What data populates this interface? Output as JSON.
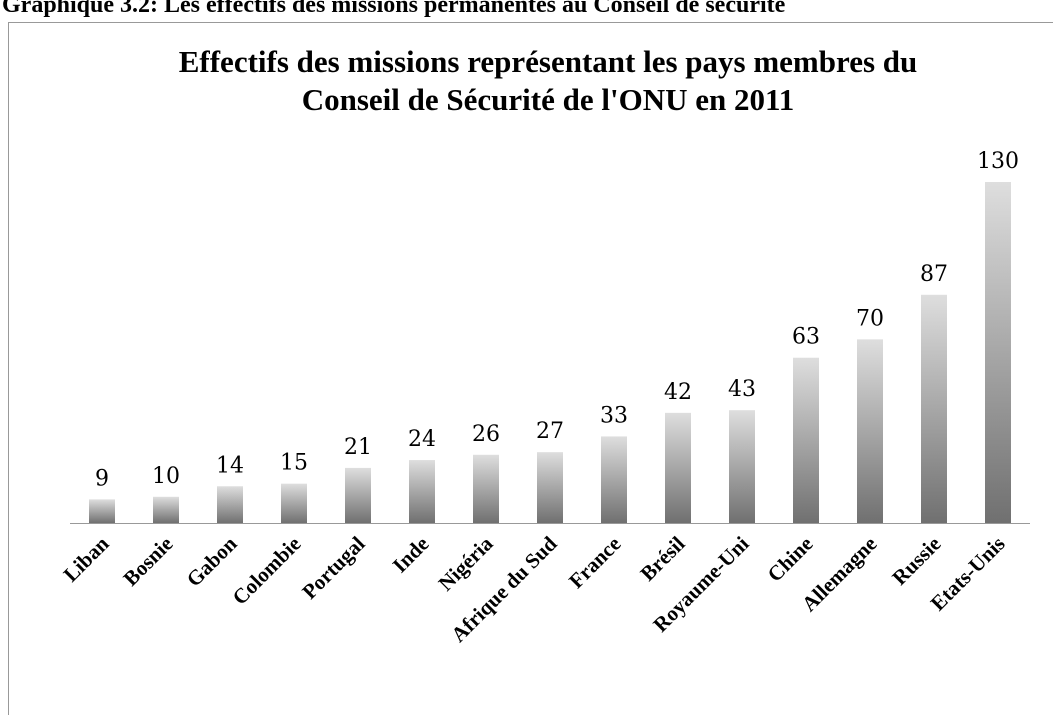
{
  "header": "Graphique 3.2: Les effectifs des missions permanentes au Conseil de sécurité",
  "chart_data": {
    "type": "bar",
    "title": [
      "Effectifs des missions représentant les pays membres du",
      "Conseil de Sécurité de l'ONU en 2011"
    ],
    "categories": [
      "Liban",
      "Bosnie",
      "Gabon",
      "Colombie",
      "Portugal",
      "Inde",
      "Nigéria",
      "Afrique du Sud",
      "France",
      "Brésil",
      "Royaume-Uni",
      "Chine",
      "Allemagne",
      "Russie",
      "Etats-Unis"
    ],
    "values": [
      9,
      10,
      14,
      15,
      21,
      24,
      26,
      27,
      33,
      42,
      43,
      63,
      70,
      87,
      130
    ],
    "ylim": [
      0,
      130
    ],
    "colors": [
      "#dedede",
      "#707070"
    ]
  }
}
